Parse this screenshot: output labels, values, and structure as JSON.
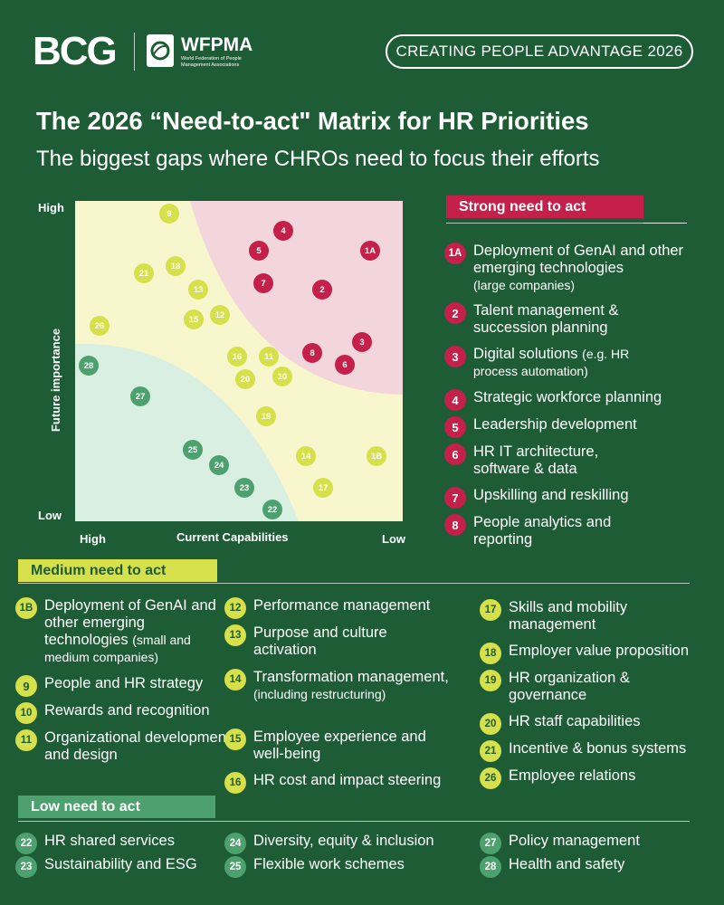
{
  "header": {
    "bcg_logo": "BCG",
    "wfpma_name": "WFPMA",
    "wfpma_full": "World Federation of People Management Associations",
    "badge": "CREATING PEOPLE ADVANTAGE 2026"
  },
  "title": "The 2026 “Need-to-act\" Matrix for HR Priorities",
  "subtitle": "The biggest gaps where CHROs need to focus their efforts",
  "colors": {
    "background": "#1e5c36",
    "strong": "#c4204a",
    "medium": "#d6e04a",
    "low": "#4da16e",
    "strong_zone": "#f3d6dc",
    "medium_zone": "#f8f6cc",
    "low_zone": "#d8efe2"
  },
  "matrix": {
    "y_axis_label": "Future importance",
    "x_axis_label": "Current Capabilities",
    "y_high": "High",
    "y_low": "Low",
    "x_high": "High",
    "x_low": "Low",
    "points": [
      {
        "id": "9",
        "level": "medium"
      },
      {
        "id": "4",
        "level": "strong"
      },
      {
        "id": "5",
        "level": "strong"
      },
      {
        "id": "1A",
        "level": "strong"
      },
      {
        "id": "21",
        "level": "medium"
      },
      {
        "id": "18",
        "level": "medium"
      },
      {
        "id": "13",
        "level": "medium"
      },
      {
        "id": "7",
        "level": "strong"
      },
      {
        "id": "2",
        "level": "strong"
      },
      {
        "id": "26",
        "level": "medium"
      },
      {
        "id": "15",
        "level": "medium"
      },
      {
        "id": "12",
        "level": "medium"
      },
      {
        "id": "3",
        "level": "strong"
      },
      {
        "id": "28",
        "level": "low"
      },
      {
        "id": "16",
        "level": "medium"
      },
      {
        "id": "11",
        "level": "medium"
      },
      {
        "id": "8",
        "level": "strong"
      },
      {
        "id": "6",
        "level": "strong"
      },
      {
        "id": "20",
        "level": "medium"
      },
      {
        "id": "10",
        "level": "medium"
      },
      {
        "id": "27",
        "level": "low"
      },
      {
        "id": "19",
        "level": "medium"
      },
      {
        "id": "25",
        "level": "low"
      },
      {
        "id": "14",
        "level": "medium"
      },
      {
        "id": "1B",
        "level": "medium"
      },
      {
        "id": "24",
        "level": "low"
      },
      {
        "id": "23",
        "level": "low"
      },
      {
        "id": "17",
        "level": "medium"
      },
      {
        "id": "22",
        "level": "low"
      }
    ]
  },
  "strong": {
    "label": "Strong need to act",
    "items": [
      {
        "id": "1A",
        "text": "Deployment of GenAI and other emerging technologies",
        "note": "(large companies)"
      },
      {
        "id": "2",
        "text": "Talent management & succession planning",
        "note": ""
      },
      {
        "id": "3",
        "text": "Digital solutions",
        "note": "(e.g. HR process automation)"
      },
      {
        "id": "4",
        "text": "Strategic workforce planning",
        "note": ""
      },
      {
        "id": "5",
        "text": "Leadership development",
        "note": ""
      },
      {
        "id": "6",
        "text": "HR IT architecture, software & data",
        "note": ""
      },
      {
        "id": "7",
        "text": "Upskilling and reskilling",
        "note": ""
      },
      {
        "id": "8",
        "text": "People analytics and reporting",
        "note": ""
      }
    ]
  },
  "medium": {
    "label": "Medium need to act",
    "items": [
      {
        "id": "1B",
        "text": "Deployment of GenAI and other emerging technologies",
        "note": "(small and medium companies)"
      },
      {
        "id": "9",
        "text": "People and HR strategy",
        "note": ""
      },
      {
        "id": "10",
        "text": "Rewards and recognition",
        "note": ""
      },
      {
        "id": "11",
        "text": "Organizational development and design",
        "note": ""
      },
      {
        "id": "12",
        "text": "Performance management",
        "note": ""
      },
      {
        "id": "13",
        "text": "Purpose and culture activation",
        "note": ""
      },
      {
        "id": "14",
        "text": "Transformation management,",
        "note": "(including restructuring)"
      },
      {
        "id": "15",
        "text": "Employee experience and well-being",
        "note": ""
      },
      {
        "id": "16",
        "text": "HR cost and impact steering",
        "note": ""
      },
      {
        "id": "17",
        "text": "Skills and mobility management",
        "note": ""
      },
      {
        "id": "18",
        "text": "Employer value proposition",
        "note": ""
      },
      {
        "id": "19",
        "text": "HR organization & governance",
        "note": ""
      },
      {
        "id": "20",
        "text": "HR staff capabilities",
        "note": ""
      },
      {
        "id": "21",
        "text": "Incentive & bonus systems",
        "note": ""
      },
      {
        "id": "26",
        "text": "Employee relations",
        "note": ""
      }
    ]
  },
  "low": {
    "label": "Low need to act",
    "items": [
      {
        "id": "22",
        "text": "HR shared services",
        "note": ""
      },
      {
        "id": "23",
        "text": "Sustainability and ESG",
        "note": ""
      },
      {
        "id": "24",
        "text": "Diversity, equity & inclusion",
        "note": ""
      },
      {
        "id": "25",
        "text": "Flexible work schemes",
        "note": ""
      },
      {
        "id": "27",
        "text": "Policy management",
        "note": ""
      },
      {
        "id": "28",
        "text": "Health and safety",
        "note": ""
      }
    ]
  }
}
